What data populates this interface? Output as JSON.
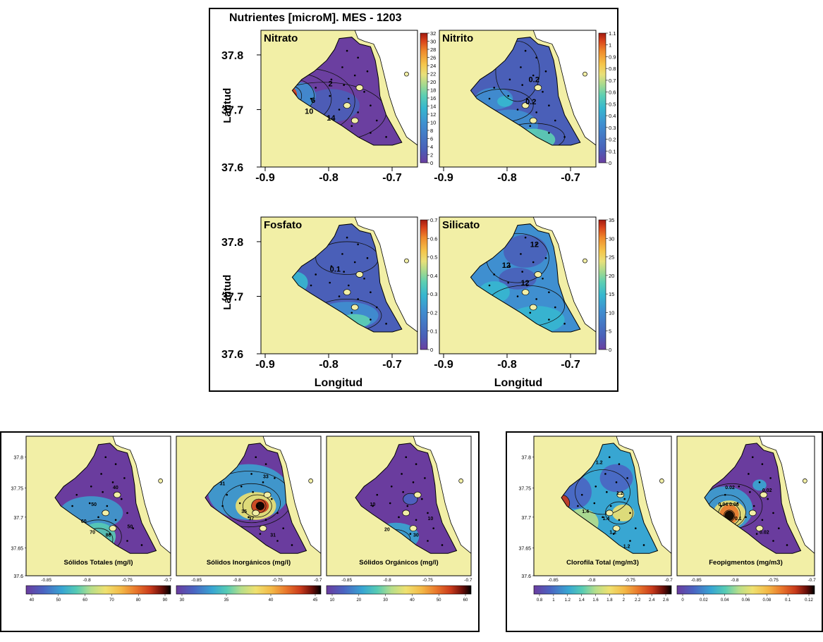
{
  "colors": {
    "land": "#f2efa6",
    "water_default": "#5b3f9c",
    "frame": "#000000",
    "viridis_like": [
      "#6b3fa0",
      "#4a5fb8",
      "#3f8fd0",
      "#36b7cf",
      "#5dcfb2",
      "#a4d98f",
      "#e8e07a",
      "#f5c54a",
      "#ef8b2c",
      "#d9431b",
      "#a11a10"
    ],
    "dark_ramp": [
      "#6a3c9e",
      "#4b64c2",
      "#38a6d2",
      "#56cbb4",
      "#b7de8a",
      "#efe170",
      "#f3b846",
      "#e9772c",
      "#c93a1b",
      "#6a0f0a",
      "#000000"
    ]
  },
  "figure_top": {
    "title": "Nutrientes [microM]. MES   - 1203",
    "ylabel": "Latitud",
    "xlabel": "Longitud",
    "panels": [
      {
        "name": "Nitrato",
        "cbar_ticks": [
          "32",
          "30",
          "28",
          "26",
          "24",
          "22",
          "20",
          "18",
          "16",
          "14",
          "12",
          "10",
          "8",
          "6",
          "4",
          "2",
          "0"
        ],
        "contour_labels": [
          "2",
          "6",
          "10",
          "14"
        ]
      },
      {
        "name": "Nitrito",
        "cbar_ticks": [
          "1.1",
          "1",
          "0.9",
          "0.8",
          "0.7",
          "0.6",
          "0.5",
          "0.4",
          "0.3",
          "0.2",
          "0.1",
          "0"
        ],
        "contour_labels": [
          "0.2",
          "0.2"
        ]
      },
      {
        "name": "Fosfato",
        "cbar_ticks": [
          "0.7",
          "0.6",
          "0.5",
          "0.4",
          "0.3",
          "0.2",
          "0.1",
          "0"
        ],
        "contour_labels": [
          "0.1"
        ]
      },
      {
        "name": "Silicato",
        "cbar_ticks": [
          "35",
          "30",
          "25",
          "20",
          "15",
          "10",
          "5",
          "0"
        ],
        "contour_labels": [
          "12",
          "12",
          "12"
        ]
      }
    ],
    "yticks": [
      "37.8",
      "37.7",
      "37.6"
    ],
    "xticks": [
      "-0.9",
      "-0.8",
      "-0.7"
    ]
  },
  "figure_bottom_left": {
    "yticks": [
      "37.8",
      "37.75",
      "37.7",
      "37.65",
      "37.6"
    ],
    "xticks": [
      "-0.85",
      "-0.8",
      "-0.75",
      "-0.7"
    ],
    "panels": [
      {
        "label": "Sólidos Totales (mg/l)",
        "cbar_ticks": [
          "40",
          "50",
          "60",
          "70",
          "80",
          "90"
        ],
        "contour_labels": [
          "40",
          "50",
          "60",
          "70",
          "80",
          "50"
        ]
      },
      {
        "label": "Sólidos Inorgánicos (mg/l)",
        "cbar_ticks": [
          "30",
          "35",
          "40",
          "45"
        ],
        "contour_labels": [
          "31",
          "33",
          "35",
          "37",
          "31"
        ]
      },
      {
        "label": "Sólidos Orgánicos (mg/l)",
        "cbar_ticks": [
          "10",
          "20",
          "30",
          "40",
          "50",
          "60"
        ],
        "contour_labels": [
          "10",
          "20",
          "30",
          "10"
        ]
      }
    ]
  },
  "figure_bottom_right": {
    "yticks": [
      "37.8",
      "37.75",
      "37.7",
      "37.65",
      "37.6"
    ],
    "xticks": [
      "-0.85",
      "-0.8",
      "-0.75",
      "-0.7"
    ],
    "panels": [
      {
        "label": "Clorofila Total (mg/m3)",
        "cbar_ticks": [
          "0.8",
          "1",
          "1.2",
          "1.4",
          "1.6",
          "1.8",
          "2",
          "2.2",
          "2.4",
          "2.6"
        ],
        "contour_labels": [
          "1.2",
          "1.2",
          "1.4",
          "1.4",
          "1.2",
          "1.2"
        ]
      },
      {
        "label": "Feopigmentos (mg/m3)",
        "cbar_ticks": [
          "0",
          "0.02",
          "0.04",
          "0.06",
          "0.08",
          "0.1",
          "0.12"
        ],
        "contour_labels": [
          "0.02",
          "0.02",
          "0.04",
          "0.06",
          "0.1",
          "0.02"
        ]
      }
    ]
  },
  "chart_data": [
    {
      "type": "heatmap",
      "title": "Nutrientes [microM]. MES   - 1203",
      "subplot": "Nitrato",
      "xlabel": "Longitud",
      "ylabel": "Latitud",
      "xlim": [
        -0.9,
        -0.65
      ],
      "ylim": [
        37.6,
        37.85
      ],
      "colorbar_range": [
        0,
        32
      ]
    },
    {
      "type": "heatmap",
      "subplot": "Nitrito",
      "xlim": [
        -0.9,
        -0.65
      ],
      "ylim": [
        37.6,
        37.85
      ],
      "colorbar_range": [
        0,
        1.1
      ]
    },
    {
      "type": "heatmap",
      "subplot": "Fosfato",
      "xlim": [
        -0.9,
        -0.65
      ],
      "ylim": [
        37.6,
        37.85
      ],
      "colorbar_range": [
        0,
        0.7
      ]
    },
    {
      "type": "heatmap",
      "subplot": "Silicato",
      "xlim": [
        -0.9,
        -0.65
      ],
      "ylim": [
        37.6,
        37.85
      ],
      "colorbar_range": [
        0,
        35
      ]
    },
    {
      "type": "heatmap",
      "subplot": "Sólidos Totales (mg/l)",
      "colorbar_range": [
        35,
        95
      ]
    },
    {
      "type": "heatmap",
      "subplot": "Sólidos Inorgánicos (mg/l)",
      "colorbar_range": [
        27,
        46
      ]
    },
    {
      "type": "heatmap",
      "subplot": "Sólidos Orgánicos (mg/l)",
      "colorbar_range": [
        5,
        65
      ]
    },
    {
      "type": "heatmap",
      "subplot": "Clorofila Total (mg/m3)",
      "colorbar_range": [
        0.8,
        2.6
      ]
    },
    {
      "type": "heatmap",
      "subplot": "Feopigmentos (mg/m3)",
      "colorbar_range": [
        0,
        0.12
      ]
    }
  ]
}
